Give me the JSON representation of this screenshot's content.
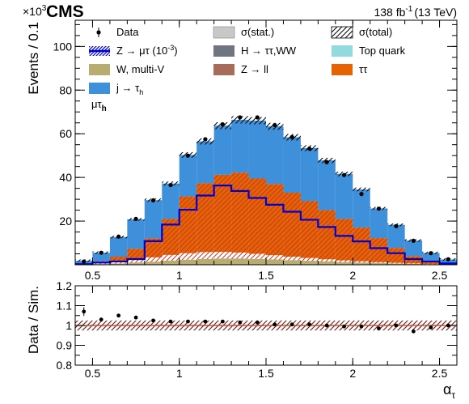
{
  "header": {
    "experiment": "CMS",
    "exponent_label": "×10",
    "exponent_power": "3",
    "lumi": "138 fb",
    "lumi_power": "-1",
    "energy": "(13 TeV)",
    "channel_base": "μτ",
    "channel_sub": "h"
  },
  "colors": {
    "data": "#000000",
    "jtotau": "#3f90da",
    "tautau": "#e76300",
    "ztoll": "#b9ac70",
    "ztoll_fill": "#a96b59",
    "htott": "#717581",
    "top": "#92dadd",
    "wmultiv": "#b9ac70",
    "signal": "#0000cc",
    "stat": "#c8c8c8"
  },
  "legend": [
    {
      "key": "data",
      "label": "Data"
    },
    {
      "key": "stat",
      "label": "σ(stat.)"
    },
    {
      "key": "total",
      "label": "σ(total)"
    },
    {
      "key": "signal",
      "label": "Z → μτ (10",
      "sup": "-3",
      "tail": ")"
    },
    {
      "key": "htott",
      "label": "H → ττ,WW"
    },
    {
      "key": "top",
      "label": "Top quark"
    },
    {
      "key": "wmultiv",
      "label": "W, multi-V"
    },
    {
      "key": "ztoll",
      "label": "Z → ll"
    },
    {
      "key": "tautau",
      "label": "ττ"
    },
    {
      "key": "jtotau",
      "label": "j → τ",
      "sub": "h"
    }
  ],
  "chart_data": [
    {
      "type": "bar",
      "panel": "main",
      "stacked": true,
      "xlim": [
        0.4,
        2.6
      ],
      "ylim": [
        0,
        112
      ],
      "xticks": [
        "0.5",
        "1",
        "1.5",
        "2",
        "2.5"
      ],
      "yticks": [
        "20",
        "40",
        "60",
        "80",
        "100"
      ],
      "ylabel": "Events / 0.1",
      "bin_edges": [
        0.4,
        0.5,
        0.6,
        0.7,
        0.8,
        0.9,
        1.0,
        1.1,
        1.2,
        1.3,
        1.4,
        1.5,
        1.6,
        1.7,
        1.8,
        1.9,
        2.0,
        2.1,
        2.2,
        2.3,
        2.4,
        2.5,
        2.6
      ],
      "stack": {
        "wmultiv": [
          0.1,
          0.3,
          0.6,
          1.0,
          1.4,
          1.9,
          2.3,
          2.6,
          2.8,
          2.8,
          2.6,
          2.4,
          2.1,
          1.8,
          1.5,
          1.2,
          1.0,
          0.8,
          0.6,
          0.4,
          0.2,
          0.1
        ],
        "ztoll": [
          0.1,
          0.3,
          0.7,
          1.3,
          2.0,
          2.6,
          3.0,
          3.2,
          3.1,
          2.8,
          2.4,
          2.0,
          1.6,
          1.3,
          1.0,
          0.8,
          0.6,
          0.4,
          0.3,
          0.2,
          0.1,
          0.0
        ],
        "tautau": [
          0.2,
          1.0,
          2.4,
          5.0,
          8.7,
          16.5,
          26.0,
          31.5,
          35.3,
          36.6,
          34.5,
          32.6,
          29.3,
          26.0,
          22.5,
          19.0,
          15.4,
          11.0,
          6.8,
          3.4,
          1.6,
          0.5
        ],
        "jtotau": [
          1.4,
          3.9,
          9.0,
          13.5,
          17.5,
          16.2,
          19.0,
          19.2,
          22.5,
          24.2,
          26.5,
          26.4,
          25.4,
          24.3,
          22.8,
          20.6,
          17.5,
          13.6,
          10.6,
          7.1,
          3.5,
          1.8
        ]
      },
      "signal_1e-3": [
        0.3,
        1.0,
        1.5,
        2.6,
        10.8,
        18.4,
        25.2,
        31.7,
        36.3,
        33.8,
        30.6,
        27.5,
        24.3,
        20.6,
        17.3,
        13.2,
        10.7,
        7.6,
        5.3,
        2.6,
        1.5,
        0.6
      ],
      "data": [
        1.5,
        5.5,
        12.9,
        21.0,
        29.5,
        36.5,
        50.0,
        57.5,
        64.3,
        67.5,
        67.5,
        64.0,
        58.5,
        53.2,
        47.0,
        41.1,
        32.4,
        25.7,
        17.7,
        11.0,
        5.3,
        2.5
      ]
    },
    {
      "type": "scatter",
      "panel": "ratio",
      "xlim": [
        0.4,
        2.6
      ],
      "ylim": [
        0.8,
        1.2
      ],
      "xticks": [
        "0.5",
        "1",
        "1.5",
        "2",
        "2.5"
      ],
      "yticks": [
        "0.8",
        "0.9",
        "1",
        "1.1",
        "1.2"
      ],
      "ylabel": "Data / Sim.",
      "xlabel": "α",
      "xlabel_sub": "τ",
      "x": [
        0.45,
        0.55,
        0.65,
        0.75,
        0.85,
        0.95,
        1.05,
        1.15,
        1.25,
        1.35,
        1.45,
        1.55,
        1.65,
        1.75,
        1.85,
        1.95,
        2.05,
        2.15,
        2.25,
        2.35,
        2.45,
        2.55
      ],
      "y": [
        1.07,
        1.03,
        1.05,
        1.04,
        1.025,
        1.02,
        1.02,
        1.02,
        1.02,
        1.015,
        1.015,
        1.005,
        1.005,
        1.005,
        1.0,
        0.995,
        0.995,
        0.985,
        1.0,
        0.97,
        0.99,
        1.0
      ],
      "total_unc_band": [
        0.975,
        1.025
      ]
    }
  ]
}
